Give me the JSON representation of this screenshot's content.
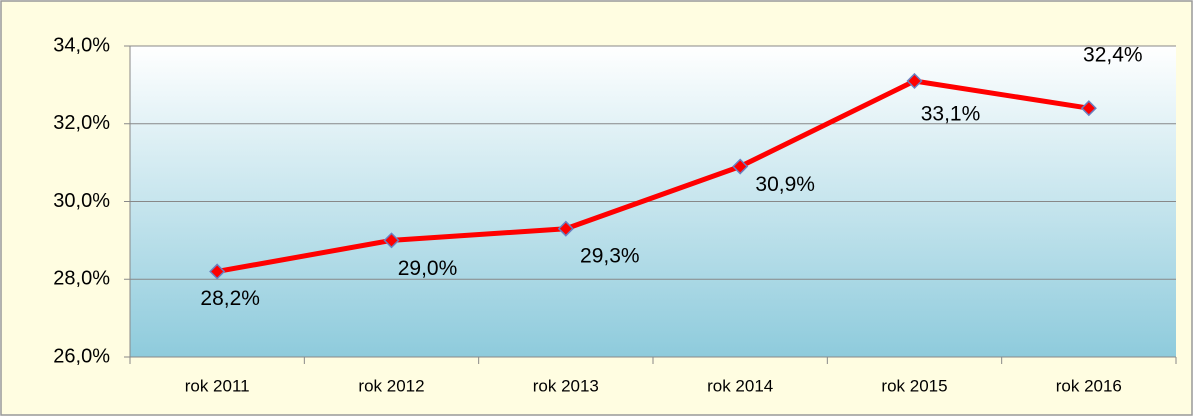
{
  "chart_data": {
    "type": "line",
    "categories": [
      "rok 2011",
      "rok 2012",
      "rok 2013",
      "rok 2014",
      "rok 2015",
      "rok 2016"
    ],
    "series": [
      {
        "color": "#ff0000",
        "values": [
          28.2,
          29.0,
          29.3,
          30.9,
          33.1,
          32.4
        ],
        "value_labels": [
          "28,2%",
          "29,0%",
          "29,3%",
          "30,9%",
          "33,1%",
          "32,4%"
        ]
      }
    ],
    "ylim": [
      26,
      34
    ],
    "yticks": [
      {
        "value": 26,
        "label": "26,0%"
      },
      {
        "value": 28,
        "label": "28,0%"
      },
      {
        "value": 30,
        "label": "30,0%"
      },
      {
        "value": 32,
        "label": "32,0%"
      },
      {
        "value": 34,
        "label": "34,0%"
      }
    ],
    "grid": true
  }
}
